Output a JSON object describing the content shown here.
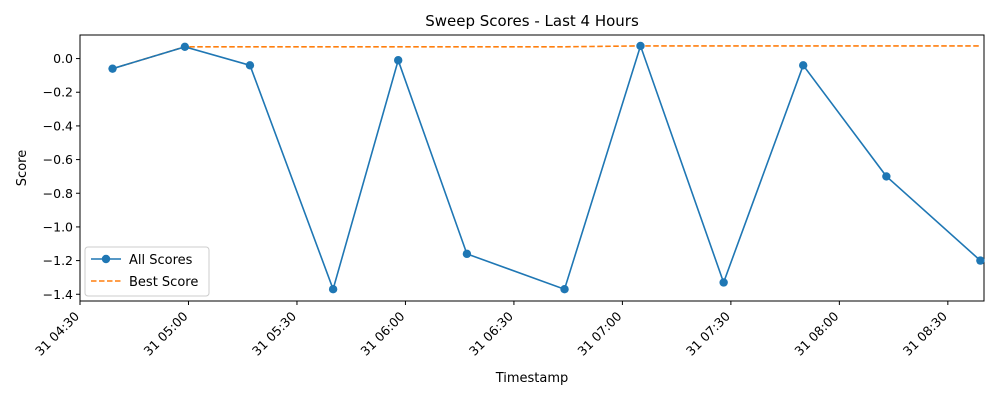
{
  "chart_data": {
    "type": "line",
    "title": "Sweep Scores - Last 4 Hours",
    "xlabel": "Timestamp",
    "ylabel": "Score",
    "x_tick_labels": [
      "31 04:30",
      "31 05:00",
      "31 05:30",
      "31 06:00",
      "31 06:30",
      "31 07:00",
      "31 07:30",
      "31 08:00",
      "31 08:30"
    ],
    "x_ticks": [
      "04:30",
      "05:00",
      "05:30",
      "06:00",
      "06:30",
      "07:00",
      "07:30",
      "08:00",
      "08:30"
    ],
    "xlim": [
      "04:30",
      "08:40"
    ],
    "ylim": [
      -1.44,
      0.14
    ],
    "y_ticks": [
      0.0,
      -0.2,
      -0.4,
      -0.6,
      -0.8,
      -1.0,
      -1.2,
      -1.4
    ],
    "y_tick_labels": [
      "0.0",
      "−0.2",
      "−0.4",
      "−0.6",
      "−0.8",
      "−1.0",
      "−1.2",
      "−1.4"
    ],
    "grid": false,
    "legend_position": "lower-left",
    "series": [
      {
        "name": "All Scores",
        "style": "solid-with-markers",
        "color": "#1f77b4",
        "points": [
          {
            "x": "04:39",
            "y": -0.06
          },
          {
            "x": "04:59",
            "y": 0.07
          },
          {
            "x": "05:17",
            "y": -0.04
          },
          {
            "x": "05:40",
            "y": -1.37
          },
          {
            "x": "05:58",
            "y": -0.01
          },
          {
            "x": "06:17",
            "y": -1.16
          },
          {
            "x": "06:44",
            "y": -1.37
          },
          {
            "x": "07:05",
            "y": 0.075
          },
          {
            "x": "07:28",
            "y": -1.33
          },
          {
            "x": "07:50",
            "y": -0.04
          },
          {
            "x": "08:13",
            "y": -0.7
          },
          {
            "x": "08:39",
            "y": -1.2
          }
        ]
      },
      {
        "name": "Best Score",
        "style": "dashed",
        "color": "#ff7f0e",
        "points": [
          {
            "x": "04:39",
            "y": -0.06
          },
          {
            "x": "04:59",
            "y": 0.07
          },
          {
            "x": "06:44",
            "y": 0.07
          },
          {
            "x": "07:05",
            "y": 0.075
          },
          {
            "x": "08:39",
            "y": 0.075
          }
        ]
      }
    ]
  }
}
